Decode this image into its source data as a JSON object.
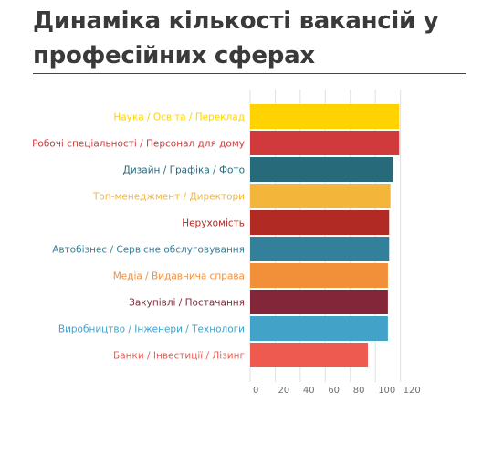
{
  "title": "Динаміка кількості вакансій у професійних сферах",
  "chart_data": {
    "type": "bar",
    "orientation": "horizontal",
    "title": "Динаміка кількості вакансій у професійних сферах",
    "xlabel": "",
    "ylabel": "",
    "xlim": [
      0,
      120
    ],
    "xticks": [
      0,
      20,
      40,
      60,
      80,
      100,
      120
    ],
    "grid": true,
    "categories": [
      "Наука / Освіта / Переклад",
      "Робочі спеціальності / Персонал для дому",
      "Дизайн / Графіка / Фото",
      "Топ-менеджмент / Директори",
      "Нерухомість",
      "Автобізнес / Сервісне обслуговування",
      "Медіа / Видавнича справа",
      "Закупівлі / Постачання",
      "Виробництво / Інженери / Технологи",
      "Банки / Інвестиції / Лізинг"
    ],
    "values": [
      119,
      119,
      114,
      112,
      111,
      111,
      110,
      110,
      110,
      94
    ],
    "colors": [
      "#FFD200",
      "#D13A3C",
      "#276A79",
      "#F4B63A",
      "#B12A24",
      "#32809A",
      "#F28F39",
      "#84263A",
      "#43A2C8",
      "#EE5A50"
    ]
  }
}
